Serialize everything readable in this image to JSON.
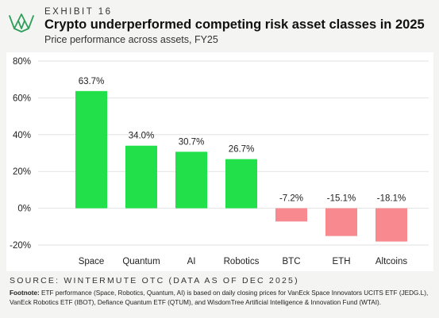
{
  "header": {
    "exhibit": "EXHIBIT 16",
    "title": "Crypto underperformed competing risk asset classes in 2025",
    "subtitle": "Price performance across assets, FY25"
  },
  "colors": {
    "positive": "#22e04a",
    "negative": "#f88a8f",
    "logo": "#2e9e5b"
  },
  "icons": {
    "logo": "wintermute-logo-icon"
  },
  "chart_data": {
    "type": "bar",
    "categories": [
      "Space",
      "Quantum",
      "AI",
      "Robotics",
      "BTC",
      "ETH",
      "Altcoins"
    ],
    "values": [
      63.7,
      34.0,
      30.7,
      26.7,
      -7.2,
      -15.1,
      -18.1
    ],
    "data_labels": [
      "63.7%",
      "34.0%",
      "30.7%",
      "26.7%",
      "-7.2%",
      "-15.1%",
      "-18.1%"
    ],
    "yticks": [
      80,
      60,
      40,
      20,
      0,
      -20
    ],
    "ytick_labels": [
      "80%",
      "60%",
      "40%",
      "20%",
      "0%",
      "-20%"
    ],
    "ylim": [
      -20,
      80
    ],
    "grid": true,
    "legend": "none"
  },
  "footer": {
    "source": "SOURCE: WINTERMUTE OTC (DATA AS OF DEC 2025)",
    "footnote_label": "Footnote:",
    "footnote_text": "ETF performance (Space, Robotics, Quantum, AI) is based on daily closing prices for VanEck Space Innovators UCITS ETF (JEDG.L), VanEck Robotics ETF (IBOT), Defiance Quantum ETF (QTUM), and WisdomTree Artificial Intelligence & Innovation Fund (WTAI)."
  }
}
